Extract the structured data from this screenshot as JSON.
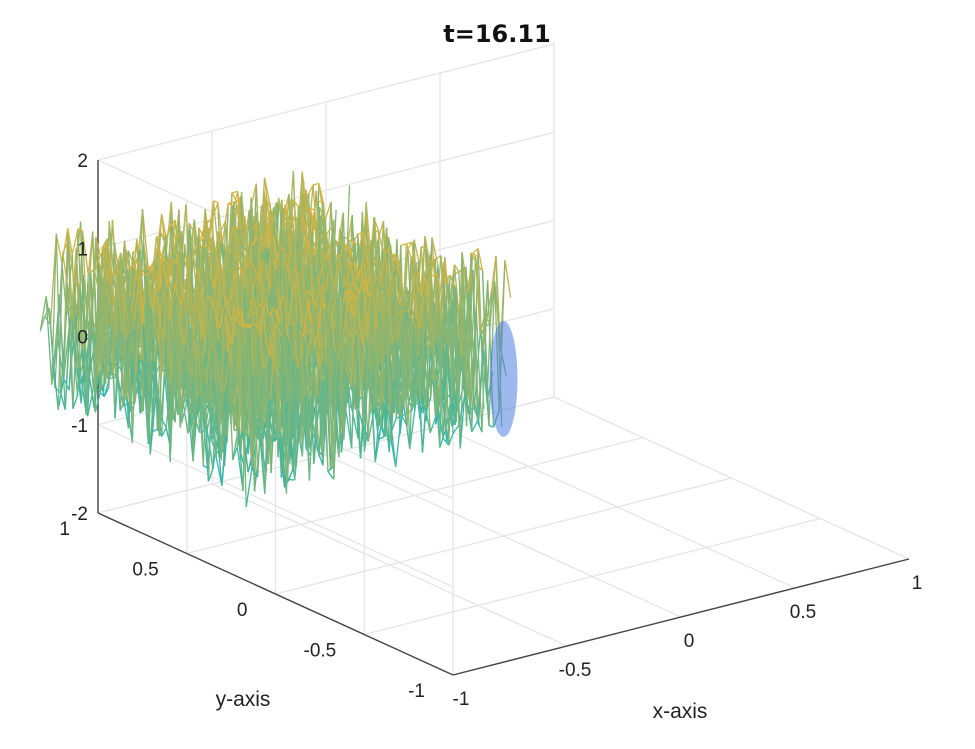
{
  "chart_data": {
    "type": "surface",
    "title": "t=16.11",
    "xlabel": "x-axis",
    "ylabel": "y-axis",
    "zlabel": "",
    "xlim": [
      -1,
      1
    ],
    "ylim": [
      -1,
      1
    ],
    "zlim": [
      -2,
      2
    ],
    "x_ticks": [
      "-1",
      "-0.5",
      "0",
      "0.5",
      "1"
    ],
    "y_ticks": [
      "-1",
      "-0.5",
      "0",
      "0.5",
      "1"
    ],
    "z_ticks": [
      "-2",
      "-1",
      "0",
      "1",
      "2"
    ],
    "grid": true,
    "colormap": "parula",
    "colors": {
      "low": "#1f6fd8",
      "mid": "#27b6b0",
      "high": "#e3b43a"
    }
  }
}
